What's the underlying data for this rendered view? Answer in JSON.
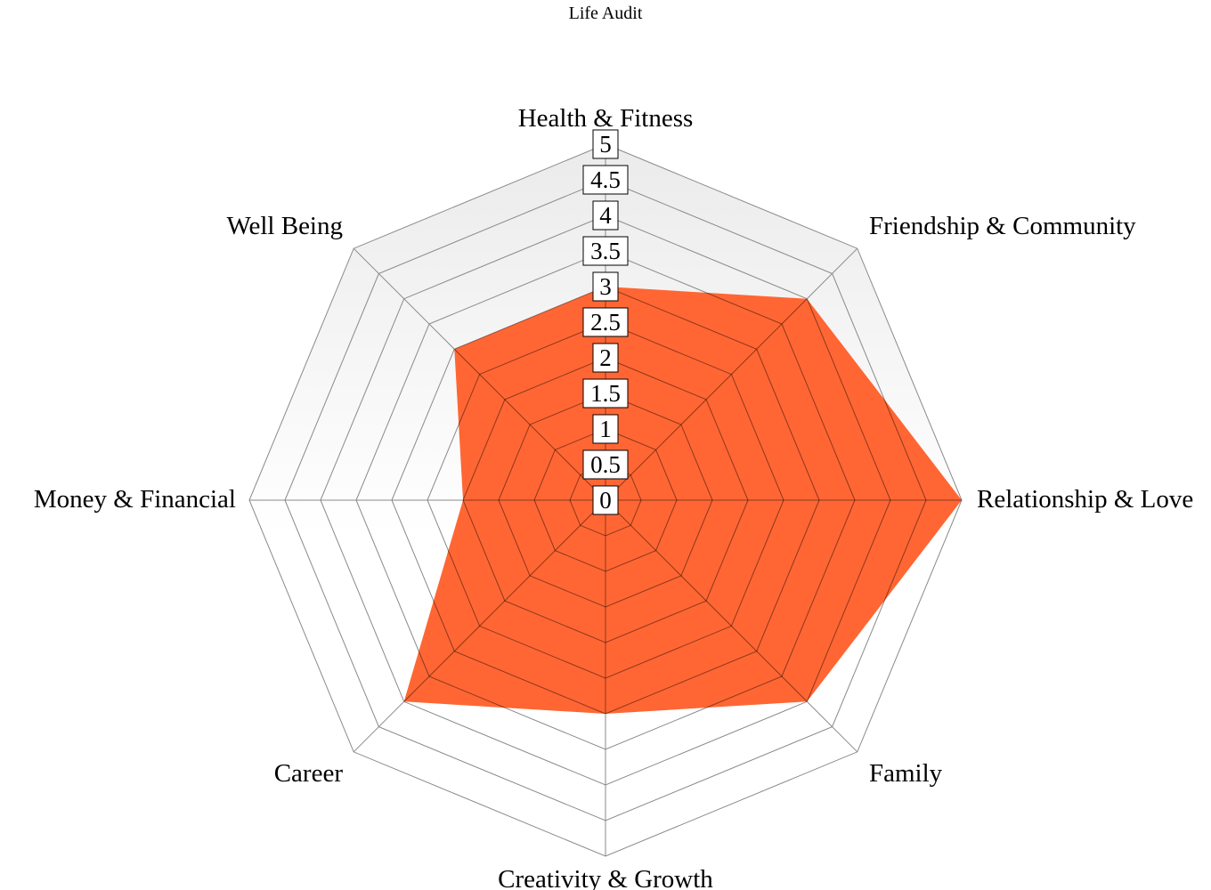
{
  "chart_data": {
    "type": "radar",
    "title": "Life Audit",
    "axes": [
      "Health & Fitness",
      "Friendship & Community",
      "Relationship & Love",
      "Family",
      "Creativity & Growth",
      "Career",
      "Money & Financial",
      "Well Being"
    ],
    "series": [
      {
        "values": [
          3,
          4,
          5,
          4,
          3,
          4,
          2,
          3
        ]
      }
    ],
    "rlim": [
      0,
      5
    ],
    "ticks": [
      "0",
      "0.5",
      "1",
      "1.5",
      "2",
      "2.5",
      "3",
      "3.5",
      "4",
      "4.5",
      "5"
    ],
    "grid": true,
    "legend": "none"
  },
  "colors": {
    "fill": "#ff6633",
    "background_top": "#ebebeb",
    "background_bottom": "#ffffff"
  }
}
